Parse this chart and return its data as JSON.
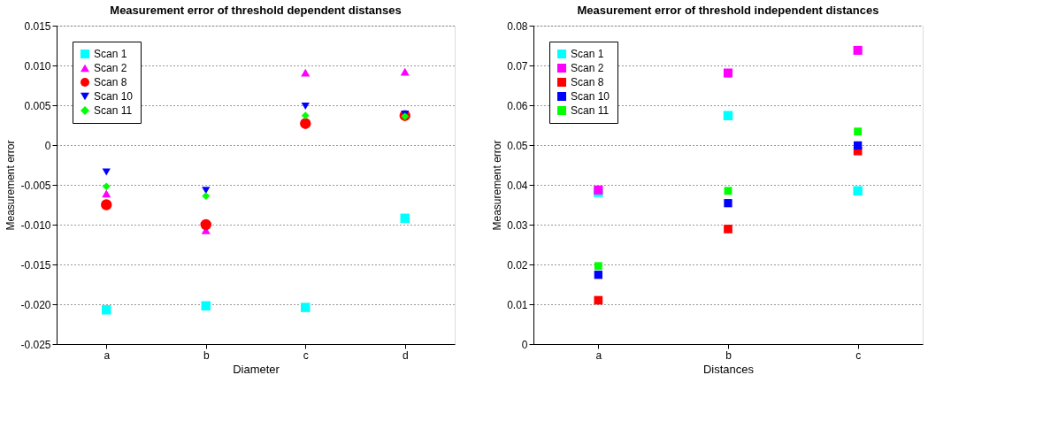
{
  "chart_data": [
    {
      "type": "scatter",
      "title": "Measurement error of threshold dependent distanses",
      "xlabel": "Diameter",
      "ylabel": "Measurement error",
      "categories": [
        "a",
        "b",
        "c",
        "d"
      ],
      "ylim": [
        -0.025,
        0.015
      ],
      "yticks": [
        -0.025,
        {
          "value": -0.02,
          "label": "-0.020"
        },
        -0.015,
        {
          "value": -0.01,
          "label": "-0.010"
        },
        -0.005,
        0,
        0.005,
        {
          "value": 0.01,
          "label": "0.010"
        },
        0.015
      ],
      "grid": "y",
      "legend": "top left",
      "series": [
        {
          "name": "Scan 1",
          "color": "#00ffff",
          "marker": "square",
          "values": [
            -0.0207,
            -0.0202,
            -0.0204,
            -0.0092
          ]
        },
        {
          "name": "Scan 2",
          "color": "#ff00ff",
          "marker": "triangle",
          "values": [
            -0.0061,
            -0.0107,
            0.0091,
            0.0092
          ]
        },
        {
          "name": "Scan 8",
          "color": "#ff0000",
          "marker": "circle",
          "values": [
            -0.0075,
            -0.01,
            0.0027,
            0.0037
          ]
        },
        {
          "name": "Scan 10",
          "color": "#0000ff",
          "marker": "triangle-down",
          "values": [
            -0.0034,
            -0.0057,
            0.0049,
            0.0039
          ]
        },
        {
          "name": "Scan 11",
          "color": "#00ff00",
          "marker": "diamond",
          "values": [
            -0.0052,
            -0.0064,
            0.0037,
            0.0036
          ]
        }
      ]
    },
    {
      "type": "scatter",
      "title": "Measurement error of threshold independent distances",
      "xlabel": "Distances",
      "ylabel": "Measurement error",
      "categories": [
        "a",
        "b",
        "c"
      ],
      "ylim": [
        0,
        0.08
      ],
      "yticks": [
        0,
        0.01,
        0.02,
        0.03,
        0.04,
        0.05,
        0.06,
        0.07,
        0.08
      ],
      "grid": "y",
      "legend": "top left",
      "marker": "square",
      "series": [
        {
          "name": "Scan 1",
          "color": "#00ffff",
          "values": [
            0.0381,
            0.0574,
            0.0385
          ]
        },
        {
          "name": "Scan 2",
          "color": "#ff00ff",
          "values": [
            0.0387,
            0.0681,
            0.0738
          ]
        },
        {
          "name": "Scan 8",
          "color": "#ff0000",
          "values": [
            0.011,
            0.0289,
            0.0485
          ]
        },
        {
          "name": "Scan 10",
          "color": "#0000ff",
          "values": [
            0.0174,
            0.0354,
            0.0499
          ]
        },
        {
          "name": "Scan 11",
          "color": "#00ff00",
          "values": [
            0.0196,
            0.0385,
            0.0534
          ]
        }
      ]
    }
  ]
}
